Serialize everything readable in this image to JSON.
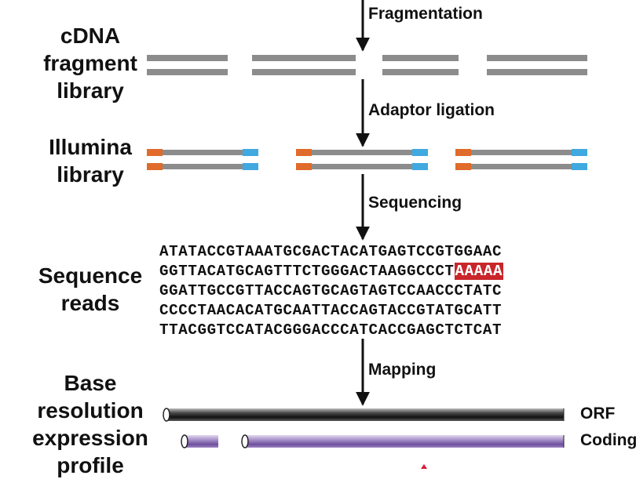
{
  "stages": [
    {
      "name": "cdna-library",
      "line1": "cDNA",
      "line2": "fragment",
      "line3": "library"
    },
    {
      "name": "illumina-library",
      "line1": "Illumina",
      "line2": "library"
    },
    {
      "name": "sequence-reads",
      "line1": "Sequence",
      "line2": "reads"
    },
    {
      "name": "expression-profile",
      "line1": "Base",
      "line2": "resolution",
      "line3": "expression",
      "line4": "profile"
    }
  ],
  "steps": {
    "fragmentation": "Fragmentation",
    "adaptor_ligation": "Adaptor ligation",
    "sequencing": "Sequencing",
    "mapping": "Mapping"
  },
  "reads": [
    {
      "seq": "ATATACCGTAAATGCGACTACATGAGTCCGTGGAAC",
      "polyA": ""
    },
    {
      "seq": "GGTTACATGCAGTTTCTGGGACTAAGGCCCT",
      "polyA": "AAAAA"
    },
    {
      "seq": "GGATTGCCGTTACCAGTGCAGTAGTCCAACCCTATC",
      "polyA": ""
    },
    {
      "seq": "CCCCTAACACATGCAATTACCAGTACCGTATGCATT",
      "polyA": ""
    },
    {
      "seq": "TTACGGTCCATACGGGACCCATCACCGAGCTCTCAT",
      "polyA": ""
    }
  ],
  "tracks": {
    "orf_label": "ORF",
    "coding_label": "Coding"
  },
  "colors": {
    "strand": "#8c8c8c",
    "adaptor_left": "#e06b2a",
    "adaptor_right": "#3fa9e0",
    "polyA": "#c8262b",
    "coding": "#8d72b3"
  }
}
